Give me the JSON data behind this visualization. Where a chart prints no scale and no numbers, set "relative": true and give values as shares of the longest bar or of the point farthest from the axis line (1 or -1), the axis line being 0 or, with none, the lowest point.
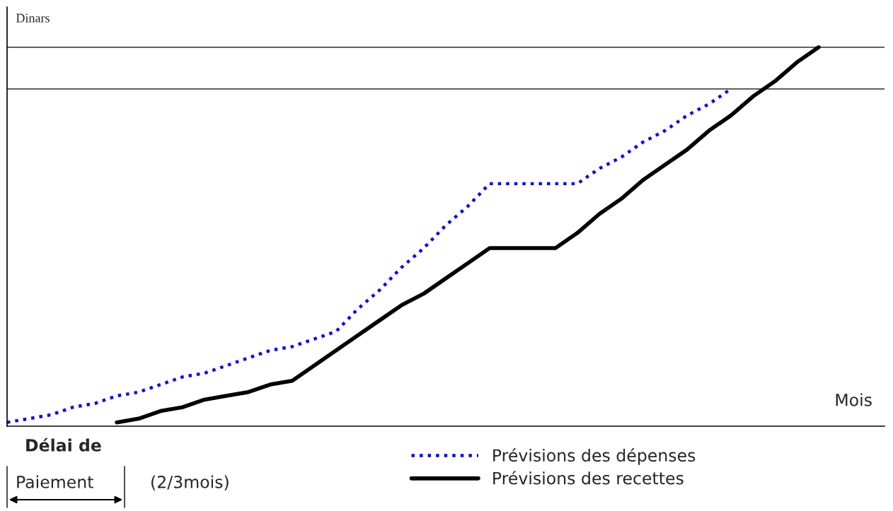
{
  "chart_data": {
    "type": "line",
    "relative": true,
    "ylabel": "Dinars",
    "xlabel": "Mois",
    "legend": "bottom",
    "marker": "none",
    "categories": [
      null,
      null,
      null,
      null,
      null,
      null,
      null,
      null,
      null,
      null,
      null,
      null,
      null,
      null,
      null,
      null,
      null,
      null,
      null,
      null,
      null,
      null,
      null,
      null,
      null,
      null,
      null,
      null,
      null,
      null,
      null,
      null,
      null,
      null,
      null,
      null,
      null,
      null,
      null,
      null,
      null
    ],
    "series": [
      {
        "name": "Prévisions des dépenses",
        "color": "#0000ff",
        "line_style": "dotted",
        "values": [
          0.01,
          0.02,
          0.03,
          0.05,
          0.06,
          0.08,
          0.09,
          0.11,
          0.13,
          0.14,
          0.16,
          0.18,
          0.2,
          0.21,
          0.23,
          0.25,
          0.31,
          0.36,
          0.42,
          0.47,
          0.53,
          0.58,
          0.64,
          0.64,
          0.64,
          0.64,
          0.64,
          0.68,
          0.71,
          0.75,
          0.78,
          0.82,
          0.85,
          0.89,
          null,
          null,
          null,
          null,
          null,
          null,
          null
        ]
      },
      {
        "name": "Prévisions des recettes",
        "color": "#000000",
        "line_style": "solid",
        "values": [
          null,
          null,
          null,
          null,
          null,
          0.01,
          0.02,
          0.04,
          0.05,
          0.07,
          0.08,
          0.09,
          0.11,
          0.12,
          0.16,
          0.2,
          0.24,
          0.28,
          0.32,
          0.35,
          0.39,
          0.43,
          0.47,
          0.47,
          0.47,
          0.47,
          0.51,
          0.56,
          0.6,
          0.65,
          0.69,
          0.73,
          0.78,
          0.82,
          0.87,
          0.91,
          0.96,
          1.0,
          null,
          null,
          null
        ]
      }
    ],
    "ref_lines": [
      {
        "axis": "y",
        "value": 1.0,
        "color": "#000000"
      },
      {
        "axis": "y",
        "value": 0.89,
        "color": "#000000"
      }
    ],
    "annotations": [
      "Délai de",
      "Paiement",
      "(2/3mois)"
    ]
  }
}
